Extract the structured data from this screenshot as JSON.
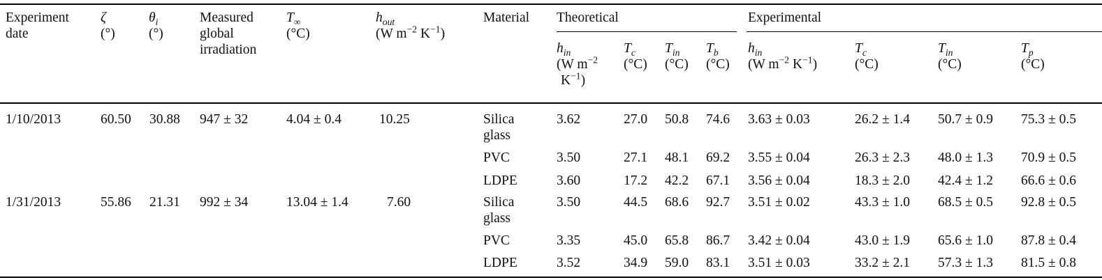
{
  "table": {
    "headers": {
      "experiment_date": [
        "Experiment",
        "date"
      ],
      "zeta": [
        "ζ",
        "(°)"
      ],
      "theta": [
        "θ",
        "i",
        "(°)"
      ],
      "irradiation": [
        "Measured",
        "global",
        "irradiation"
      ],
      "t_inf": [
        "T",
        "∞",
        "(°C)"
      ],
      "h_out": [
        "h",
        "out",
        "(W m",
        "−2",
        " K",
        "−1",
        ")"
      ],
      "material": "Material",
      "theoretical": "Theoretical",
      "experimental": "Experimental"
    },
    "subheaders": {
      "theo_hin": [
        "h",
        "in",
        "(W m",
        "−2",
        "K",
        "−1",
        ")"
      ],
      "theo_tc": [
        "T",
        "c",
        "(°C)"
      ],
      "theo_tin": [
        "T",
        "in",
        "(°C)"
      ],
      "theo_tb": [
        "T",
        "b",
        "(°C)"
      ],
      "exp_hin": [
        "h",
        "in",
        "(W m",
        "−2",
        " K",
        "−1",
        ")"
      ],
      "exp_tc": [
        "T",
        "c",
        "(°C)"
      ],
      "exp_tin": [
        "T",
        "in",
        "(°C)"
      ],
      "exp_tp": [
        "T",
        "p",
        "(°C)"
      ]
    },
    "groups": [
      {
        "date": "1/10/2013",
        "zeta": "60.50",
        "theta": "30.88",
        "irradiation": "947 ± 32",
        "t_inf": "4.04 ± 0.4",
        "h_out": "10.25",
        "rows": [
          {
            "material": [
              "Silica",
              "glass"
            ],
            "hin": "3.62",
            "tc": "27.0",
            "tin": "50.8",
            "tb": "74.6",
            "ehin": "3.63 ± 0.03",
            "etc": "26.2 ± 1.4",
            "etin": "50.7 ± 0.9",
            "etp": "75.3 ± 0.5"
          },
          {
            "material": [
              "PVC"
            ],
            "hin": "3.50",
            "tc": "27.1",
            "tin": "48.1",
            "tb": "69.2",
            "ehin": "3.55 ± 0.04",
            "etc": "26.3 ± 2.3",
            "etin": "48.0 ± 1.3",
            "etp": "70.9 ± 0.5"
          },
          {
            "material": [
              "LDPE"
            ],
            "hin": "3.60",
            "tc": "17.2",
            "tin": "42.2",
            "tb": "67.1",
            "ehin": "3.56 ± 0.04",
            "etc": "18.3 ± 2.0",
            "etin": "42.4 ± 1.2",
            "etp": "66.6 ± 0.6"
          }
        ]
      },
      {
        "date": "1/31/2013",
        "zeta": "55.86",
        "theta": "21.31",
        "irradiation": "992 ± 34",
        "t_inf": "13.04 ± 1.4",
        "h_out": "7.60",
        "rows": [
          {
            "material": [
              "Silica",
              "glass"
            ],
            "hin": "3.50",
            "tc": "44.5",
            "tin": "68.6",
            "tb": "92.7",
            "ehin": "3.51 ± 0.02",
            "etc": "43.3 ± 1.0",
            "etin": "68.5 ± 0.5",
            "etp": "92.8 ± 0.5"
          },
          {
            "material": [
              "PVC"
            ],
            "hin": "3.35",
            "tc": "45.0",
            "tin": "65.8",
            "tb": "86.7",
            "ehin": "3.42 ± 0.04",
            "etc": "43.0 ± 1.9",
            "etin": "65.6 ± 1.0",
            "etp": "87.8 ± 0.4"
          },
          {
            "material": [
              "LDPE"
            ],
            "hin": "3.52",
            "tc": "34.9",
            "tin": "59.0",
            "tb": "83.1",
            "ehin": "3.51 ± 0.03",
            "etc": "33.2 ± 2.1",
            "etin": "57.3 ± 1.3",
            "etp": "81.5 ± 0.8"
          }
        ]
      }
    ]
  }
}
